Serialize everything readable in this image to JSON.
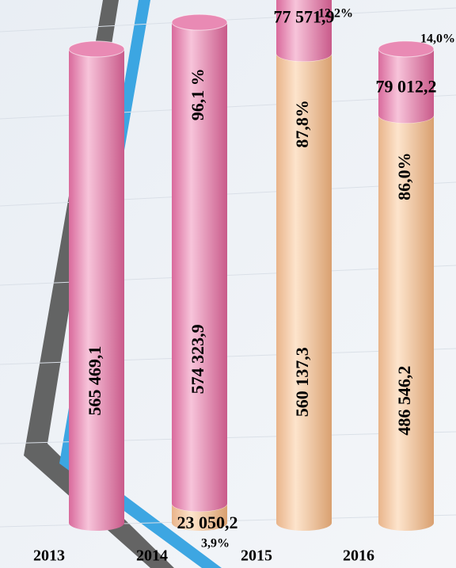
{
  "chart_data": {
    "type": "stacked-cylinder",
    "categories": [
      "2013",
      "2014",
      "2015",
      "2016"
    ],
    "ylim": [
      0,
      624000
    ],
    "series": [
      {
        "color": "#f0a8c8",
        "values": [
          null,
          23050.2,
          560137.3,
          486546.2
        ],
        "value_labels": [
          null,
          "23 050,2",
          "560 137,3",
          "486 546,2"
        ],
        "shares": [
          null,
          3.9,
          87.8,
          86.0
        ],
        "share_labels": [
          null,
          "3,9%",
          "87,8%",
          "86,0%"
        ],
        "tone": "peach"
      },
      {
        "color": "#e98ab4",
        "values": [
          565469.1,
          574323.9,
          77571.9,
          79012.2
        ],
        "value_labels": [
          "565 469,1",
          "574 323,9",
          "77 571,9",
          "79 012,2"
        ],
        "shares": [
          null,
          96.1,
          12.2,
          14.0
        ],
        "share_labels": [
          null,
          "96,1 %",
          "12,2%",
          "14,0%"
        ],
        "tone": "pink"
      }
    ]
  }
}
